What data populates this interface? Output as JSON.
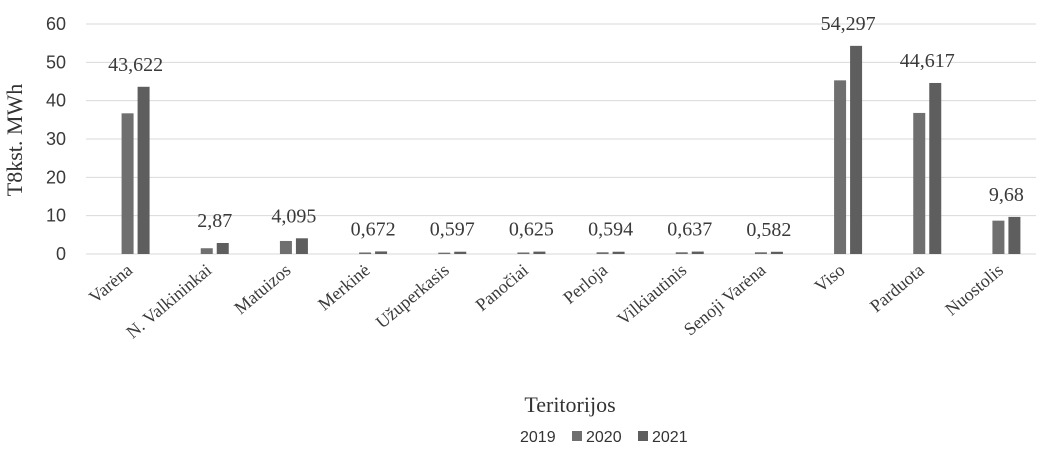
{
  "chart_data": {
    "type": "bar",
    "title": "",
    "xlabel": "Teritorijos",
    "ylabel": "T8kst. MWh",
    "ylim": [
      0,
      60
    ],
    "yticks": [
      "0",
      "10",
      "20",
      "30",
      "40",
      "50",
      "60"
    ],
    "grid": true,
    "legend_position": "bottom",
    "categories": [
      "Varėna",
      "N. Valkininkai",
      "Matuizos",
      "Merkinė",
      "Užuperkasis",
      "Panočiai",
      "Perloja",
      "Vilkiautinis",
      "Senoji Varėna",
      "Viso",
      "Parduota",
      "Nuostolis"
    ],
    "series": [
      {
        "name": "2019",
        "color": "#7f7f7f",
        "values": [
          0,
          0,
          0,
          0,
          0,
          0,
          0,
          0,
          0,
          0,
          0,
          0
        ]
      },
      {
        "name": "2020",
        "color": "#6f6f6f",
        "values": [
          36.7,
          1.5,
          3.4,
          0.4,
          0.35,
          0.4,
          0.45,
          0.45,
          0.45,
          45.3,
          36.8,
          8.7
        ]
      },
      {
        "name": "2021",
        "color": "#5e5e5e",
        "values": [
          43.622,
          2.87,
          4.095,
          0.672,
          0.597,
          0.625,
          0.594,
          0.637,
          0.582,
          54.297,
          44.617,
          9.68
        ]
      }
    ],
    "data_labels": [
      "43,622",
      "2,87",
      "4,095",
      "0,672",
      "0,597",
      "0,625",
      "0,594",
      "0,637",
      "0,582",
      "54,297",
      "44,617",
      "9,68"
    ]
  }
}
